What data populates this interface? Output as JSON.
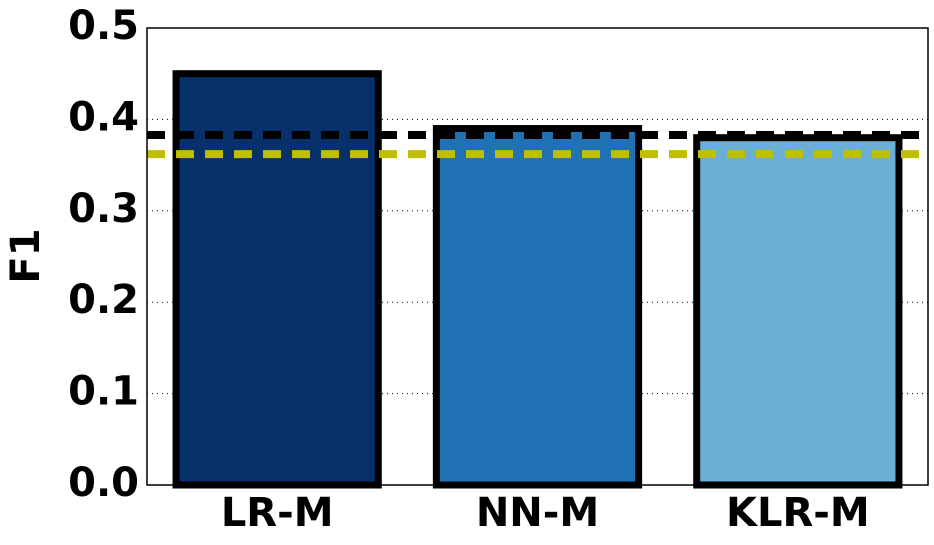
{
  "chart_data": {
    "type": "bar",
    "y_label": "F1",
    "categories": [
      "LR-M",
      "NN-M",
      "KLR-M"
    ],
    "values": [
      0.45,
      0.39,
      0.38
    ],
    "colors": [
      "#08306b",
      "#2171b5",
      "#6baed6"
    ],
    "ylim": [
      0,
      0.5
    ],
    "yticks": [
      {
        "value": 0,
        "label": "0.0"
      },
      0.1,
      0.2,
      0.3,
      0.4,
      0.5
    ],
    "grid": true,
    "reference_lines": [
      {
        "value": 0.383,
        "color": "#000000"
      },
      {
        "value": 0.362,
        "color": "#bfbf00"
      }
    ]
  }
}
